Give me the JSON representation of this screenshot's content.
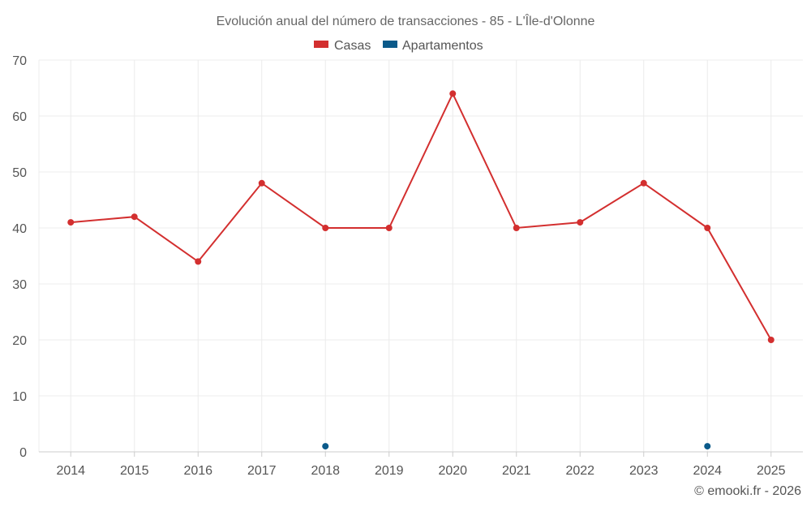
{
  "chart_data": {
    "type": "line",
    "title": "Evolución anual del número de transacciones - 85 - L'Île-d'Olonne",
    "categories": [
      "2014",
      "2015",
      "2016",
      "2017",
      "2018",
      "2019",
      "2020",
      "2021",
      "2022",
      "2023",
      "2024",
      "2025"
    ],
    "ylim": [
      0,
      70
    ],
    "yticks": [
      0,
      10,
      20,
      30,
      40,
      50,
      60,
      70
    ],
    "grid": true,
    "legend_position": "top-center",
    "series": [
      {
        "name": "Casas",
        "color": "#d32f2f",
        "values": [
          41,
          42,
          34,
          48,
          40,
          40,
          64,
          40,
          41,
          48,
          40,
          20
        ]
      },
      {
        "name": "Apartamentos",
        "color": "#0b5a8a",
        "values": [
          null,
          null,
          null,
          null,
          1,
          null,
          null,
          null,
          null,
          null,
          1,
          null
        ]
      }
    ]
  },
  "footer": "© emooki.fr - 2026"
}
